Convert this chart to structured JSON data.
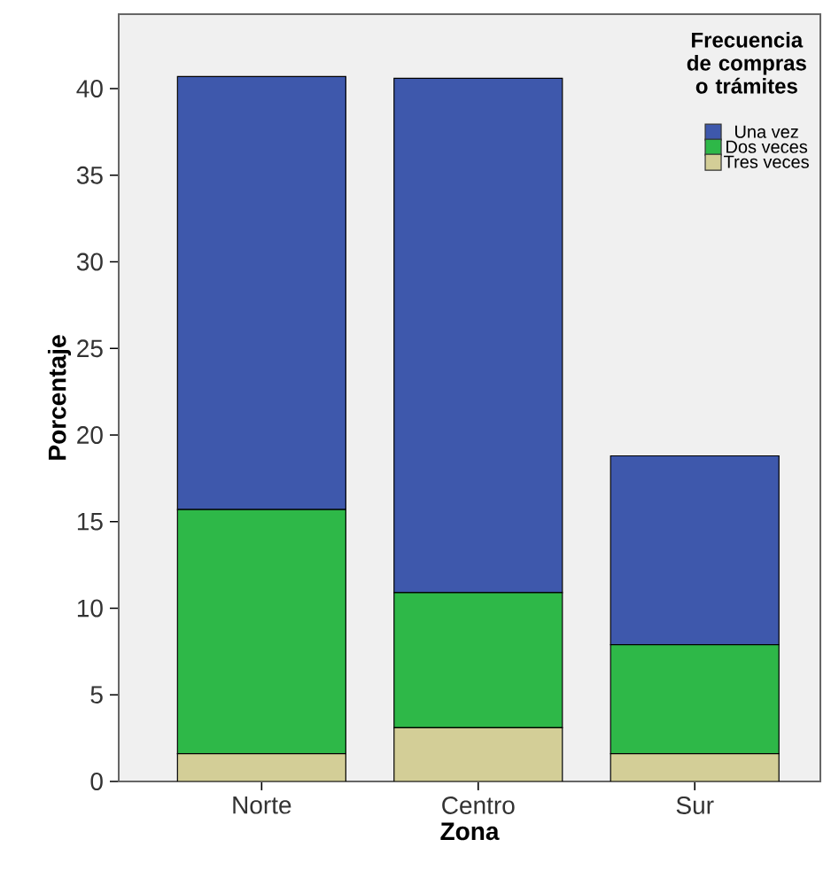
{
  "chart_data": {
    "type": "bar",
    "stacked": true,
    "xlabel": "Zona",
    "ylabel": "Porcentaje",
    "legend_title": "Frecuencia de compras o trámites",
    "categories": [
      "Norte",
      "Centro",
      "Sur"
    ],
    "series": [
      {
        "name": "Tres veces",
        "color": "#d3ce97",
        "values": [
          1.6,
          3.1,
          1.6
        ]
      },
      {
        "name": "Dos veces",
        "color": "#2eb848",
        "values": [
          14.1,
          7.8,
          6.3
        ]
      },
      {
        "name": "Una vez",
        "color": "#3e58ac",
        "values": [
          25.0,
          29.7,
          10.9
        ]
      }
    ],
    "ylim": [
      0,
      44.3
    ],
    "yticks": [
      0,
      5,
      10,
      15,
      20,
      25,
      30,
      35,
      40
    ],
    "grid": false,
    "legend": "top right"
  }
}
